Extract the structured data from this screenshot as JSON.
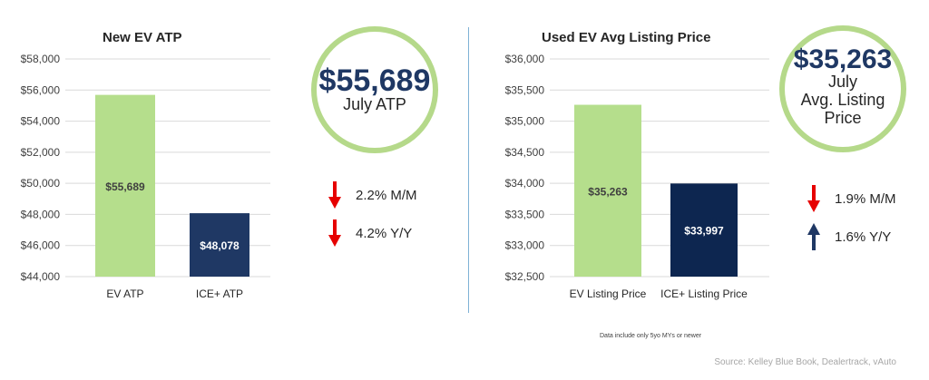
{
  "left": {
    "title": "New EV ATP",
    "circle": {
      "value": "$55,689",
      "label_lines": [
        "July ATP"
      ]
    },
    "changes": [
      {
        "direction": "down",
        "text": "2.2% M/M"
      },
      {
        "direction": "down",
        "text": "4.2% Y/Y"
      }
    ]
  },
  "right": {
    "title": "Used EV Avg Listing Price",
    "circle": {
      "value": "$35,263",
      "label_lines": [
        "July",
        "Avg. Listing",
        "Price"
      ]
    },
    "changes": [
      {
        "direction": "down",
        "text": "1.9% M/M"
      },
      {
        "direction": "up",
        "text": "1.6% Y/Y"
      }
    ]
  },
  "note": "Data include only 5yo MYs or newer",
  "source": "Source: Kelley Blue Book, Dealertrack, vAuto",
  "colors": {
    "green_bar": "#b5de8c",
    "navy_bar": "#1f3864",
    "dark_navy_bar": "#0d2650",
    "down_arrow": "#e60000",
    "up_arrow": "#1f3864",
    "ring": "#b5d98a"
  },
  "chart_data": [
    {
      "type": "bar",
      "title": "New EV ATP",
      "categories": [
        "EV ATP",
        "ICE+ ATP"
      ],
      "values": [
        55689,
        48078
      ],
      "value_labels": [
        "$55,689",
        "$48,078"
      ],
      "ylim": [
        44000,
        58000
      ],
      "yticks": [
        44000,
        46000,
        48000,
        50000,
        52000,
        54000,
        56000,
        58000
      ],
      "ytick_labels": [
        "$44,000",
        "$46,000",
        "$48,000",
        "$50,000",
        "$52,000",
        "$54,000",
        "$56,000",
        "$58,000"
      ],
      "bar_colors": [
        "#b5de8c",
        "#1f3864"
      ],
      "label_colors": [
        "#404040",
        "#ffffff"
      ],
      "grid": true
    },
    {
      "type": "bar",
      "title": "Used EV Avg Listing Price",
      "categories": [
        "EV Listing Price",
        "ICE+ Listing Price"
      ],
      "values": [
        35263,
        33997
      ],
      "value_labels": [
        "$35,263",
        "$33,997"
      ],
      "ylim": [
        32500,
        36000
      ],
      "yticks": [
        32500,
        33000,
        33500,
        34000,
        34500,
        35000,
        35500,
        36000
      ],
      "ytick_labels": [
        "$32,500",
        "$33,000",
        "$33,500",
        "$34,000",
        "$34,500",
        "$35,000",
        "$35,500",
        "$36,000"
      ],
      "bar_colors": [
        "#b5de8c",
        "#0d2650"
      ],
      "label_colors": [
        "#404040",
        "#ffffff"
      ],
      "grid": true
    }
  ]
}
